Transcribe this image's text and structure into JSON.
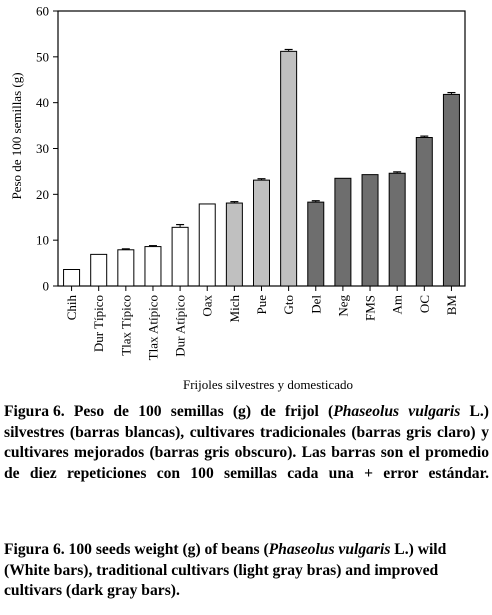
{
  "chart_data": {
    "type": "bar",
    "categories": [
      "Chih",
      "Dur Típico",
      "Tlax Típico",
      "Tlax Atípico",
      "Dur Atípico",
      "Oax",
      "Mich",
      "Pue",
      "Gto",
      "Del",
      "Neg",
      "FMS",
      "Am",
      "OC",
      "BM"
    ],
    "values": [
      3.6,
      6.9,
      7.9,
      8.6,
      12.8,
      17.9,
      18.1,
      23.1,
      51.2,
      18.3,
      23.5,
      24.3,
      24.6,
      32.4,
      41.8
    ],
    "errors": [
      0,
      0,
      0.2,
      0.2,
      0.6,
      0,
      0.3,
      0.3,
      0.4,
      0.3,
      0,
      0,
      0.3,
      0.3,
      0.4
    ],
    "groups": [
      "white",
      "white",
      "white",
      "white",
      "white",
      "white",
      "light",
      "light",
      "light",
      "dark",
      "dark",
      "dark",
      "dark",
      "dark",
      "dark"
    ],
    "group_colors": {
      "white": "#ffffff",
      "light": "#c0c0c0",
      "dark": "#6e6e6e"
    },
    "xlabel": "Frijoles silvestres y domesticado",
    "ylabel": "Peso de 100 semillas (g)",
    "ylim": [
      0,
      60
    ],
    "yticks": [
      0,
      10,
      20,
      30,
      40,
      50,
      60
    ],
    "grid": false
  },
  "caption_es": {
    "label": "Figura 6.",
    "line1": "Peso de 100 semillas (g) de frijol (",
    "species": "Phaseolus vulgaris",
    "line1_end": " L.) silvestres (barras blancas), cultivares tradicionales (barras gris claro) y cultivares mejorados (barras gris obscuro). Las barras son el promedio de diez repeticiones con 100 semillas cada una + error estándar."
  },
  "caption_en": {
    "label": "Figura 6.",
    "line1": "100 seeds weight (g) of beans (",
    "species": "Phaseolus vulgaris",
    "line1_end": " L.) wild (White bars), traditional cultivars (light gray bras) and improved cultivars (dark gray bars)."
  }
}
